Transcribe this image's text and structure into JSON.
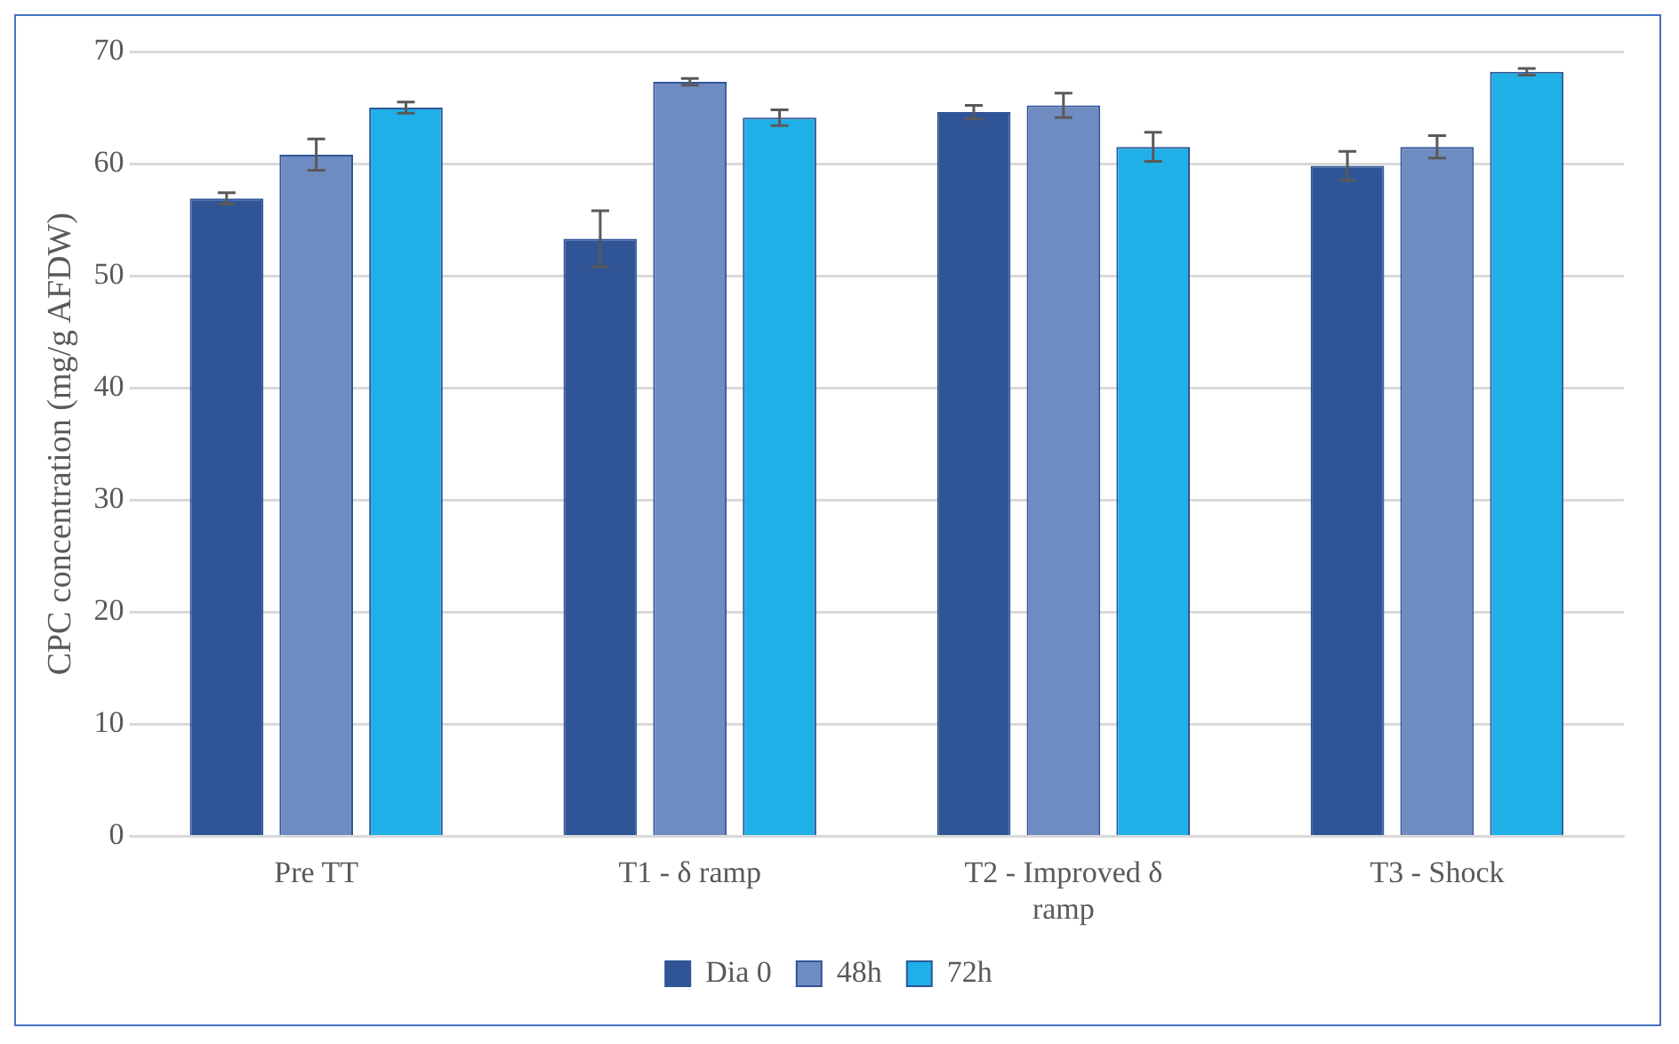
{
  "chart_data": {
    "type": "bar",
    "ylabel": "CPC concentration (mg/g AFDW)",
    "categories": [
      "Pre TT",
      "T1 - δ ramp",
      "T2 - Improved δ ramp",
      "T3 - Shock"
    ],
    "series": [
      {
        "name": "Dia 0",
        "color": "#2f5597",
        "values": [
          56.9,
          53.3,
          64.6,
          59.8
        ],
        "errors": [
          0.5,
          2.5,
          0.6,
          1.3
        ]
      },
      {
        "name": "48h",
        "color": "#6f8cc2",
        "values": [
          60.8,
          67.3,
          65.2,
          61.5
        ],
        "errors": [
          1.4,
          0.3,
          1.1,
          1.0
        ]
      },
      {
        "name": "72h",
        "color": "#1fb0e8",
        "values": [
          65.0,
          64.1,
          61.5,
          68.2
        ],
        "errors": [
          0.5,
          0.7,
          1.3,
          0.3
        ]
      }
    ],
    "ylim": [
      0,
      70
    ],
    "yticks": [
      0,
      10,
      20,
      30,
      40,
      50,
      60,
      70
    ],
    "grid": "y",
    "legend": "bottom"
  }
}
